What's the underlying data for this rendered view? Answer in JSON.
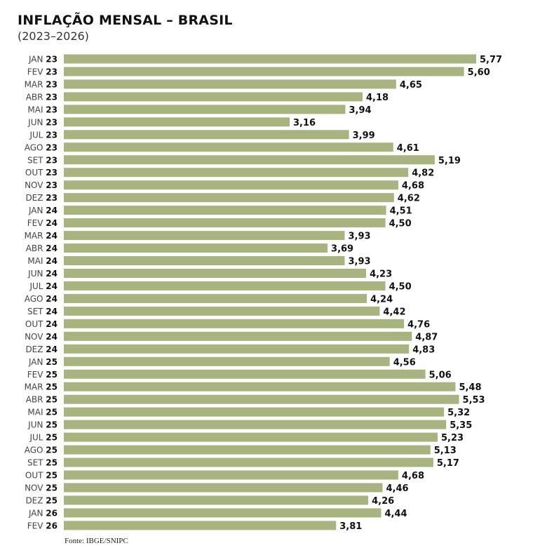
{
  "chart_data": {
    "type": "bar",
    "orientation": "horizontal",
    "title": "INFLAÇÃO MENSAL – BRASIL",
    "subtitle": "(2023–2026)",
    "source": "Fonte: IBGE/SNIPC",
    "xlabel": "",
    "ylabel": "",
    "xlim": [
      0,
      5.77
    ],
    "grid": false,
    "legend": "none",
    "bar_color": "#a7b47f",
    "categories": [
      {
        "month": "JAN",
        "year": "23"
      },
      {
        "month": "FEV",
        "year": "23"
      },
      {
        "month": "MAR",
        "year": "23"
      },
      {
        "month": "ABR",
        "year": "23"
      },
      {
        "month": "MAI",
        "year": "23"
      },
      {
        "month": "JUN",
        "year": "23"
      },
      {
        "month": "JUL",
        "year": "23"
      },
      {
        "month": "AGO",
        "year": "23"
      },
      {
        "month": "SET",
        "year": "23"
      },
      {
        "month": "OUT",
        "year": "23"
      },
      {
        "month": "NOV",
        "year": "23"
      },
      {
        "month": "DEZ",
        "year": "23"
      },
      {
        "month": "JAN",
        "year": "24"
      },
      {
        "month": "FEV",
        "year": "24"
      },
      {
        "month": "MAR",
        "year": "24"
      },
      {
        "month": "ABR",
        "year": "24"
      },
      {
        "month": "MAI",
        "year": "24"
      },
      {
        "month": "JUN",
        "year": "24"
      },
      {
        "month": "JUL",
        "year": "24"
      },
      {
        "month": "AGO",
        "year": "24"
      },
      {
        "month": "SET",
        "year": "24"
      },
      {
        "month": "OUT",
        "year": "24"
      },
      {
        "month": "NOV",
        "year": "24"
      },
      {
        "month": "DEZ",
        "year": "24"
      },
      {
        "month": "JAN",
        "year": "25"
      },
      {
        "month": "FEV",
        "year": "25"
      },
      {
        "month": "MAR",
        "year": "25"
      },
      {
        "month": "ABR",
        "year": "25"
      },
      {
        "month": "MAI",
        "year": "25"
      },
      {
        "month": "JUN",
        "year": "25"
      },
      {
        "month": "JUL",
        "year": "25"
      },
      {
        "month": "AGO",
        "year": "25"
      },
      {
        "month": "SET",
        "year": "25"
      },
      {
        "month": "OUT",
        "year": "25"
      },
      {
        "month": "NOV",
        "year": "25"
      },
      {
        "month": "DEZ",
        "year": "25"
      },
      {
        "month": "JAN",
        "year": "26"
      },
      {
        "month": "FEV",
        "year": "26"
      }
    ],
    "values": [
      5.77,
      5.6,
      4.65,
      4.18,
      3.94,
      3.16,
      3.99,
      4.61,
      5.19,
      4.82,
      4.68,
      4.62,
      4.51,
      4.5,
      3.93,
      3.69,
      3.93,
      4.23,
      4.5,
      4.24,
      4.42,
      4.76,
      4.87,
      4.83,
      4.56,
      5.06,
      5.48,
      5.53,
      5.32,
      5.35,
      5.23,
      5.13,
      5.17,
      4.68,
      4.46,
      4.26,
      4.44,
      3.81
    ],
    "value_labels": [
      "5,77",
      "5,60",
      "4,65",
      "4,18",
      "3,94",
      "3,16",
      "3,99",
      "4,61",
      "5,19",
      "4,82",
      "4,68",
      "4,62",
      "4,51",
      "4,50",
      "3,93",
      "3,69",
      "3,93",
      "4,23",
      "4,50",
      "4,24",
      "4,42",
      "4,76",
      "4,87",
      "4,83",
      "4,56",
      "5,06",
      "5,48",
      "5,53",
      "5,32",
      "5,35",
      "5,23",
      "5,13",
      "5,17",
      "4,68",
      "4,46",
      "4,26",
      "4,44",
      "3,81"
    ]
  }
}
